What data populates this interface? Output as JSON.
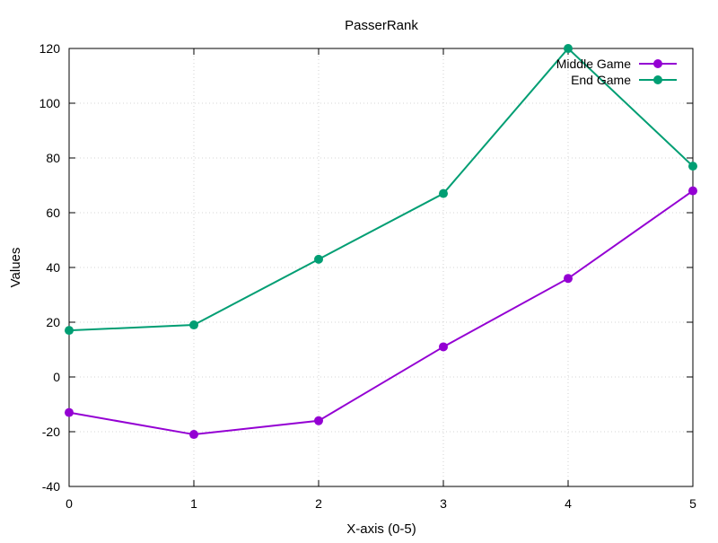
{
  "chart_data": {
    "type": "line",
    "title": "PasserRank",
    "xlabel": "X-axis (0-5)",
    "ylabel": "Values",
    "x": [
      0,
      1,
      2,
      3,
      4,
      5
    ],
    "xlim": [
      0,
      5
    ],
    "ylim": [
      -40,
      120
    ],
    "x_ticks": [
      "0",
      "1",
      "2",
      "3",
      "4",
      "5"
    ],
    "y_ticks": [
      "-40",
      "-20",
      "0",
      "20",
      "40",
      "60",
      "80",
      "100",
      "120"
    ],
    "grid": true,
    "legend_position": "top-right",
    "series": [
      {
        "name": "Middle Game",
        "color": "#9400d3",
        "values": [
          -13,
          -21,
          -16,
          11,
          36,
          68
        ]
      },
      {
        "name": "End Game",
        "color": "#009e73",
        "values": [
          17,
          19,
          43,
          67,
          120,
          77
        ]
      }
    ]
  }
}
